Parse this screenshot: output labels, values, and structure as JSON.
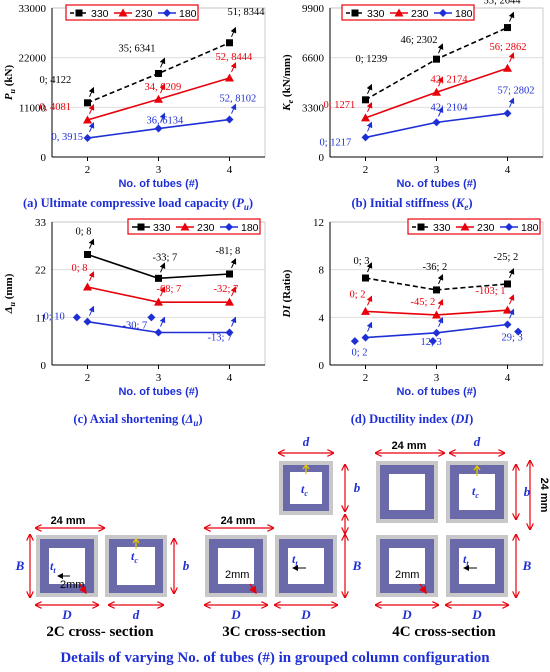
{
  "panels": {
    "a": {
      "caption_pre": "(a) Ultimate compressive load capacity (",
      "caption_sym": "P",
      "caption_sub": "u",
      "caption_post": ")"
    },
    "b": {
      "caption_pre": "(b) Initial stiffness (",
      "caption_sym": "K",
      "caption_sub": "e",
      "caption_post": ")"
    },
    "c": {
      "caption_pre": "(c) Axial shortening (",
      "caption_sym": "Δ",
      "caption_sub": "u",
      "caption_post": ")"
    },
    "d": {
      "caption_pre": "(d) Ductility index (",
      "caption_sym": "DI",
      "caption_sub": "",
      "caption_post": ")"
    }
  },
  "colors": {
    "s330": "#000000",
    "s230": "#e8000b",
    "s180": "#1f2fd6",
    "tube_fill": "#6a6aaa",
    "tube_border": "#c8c8c8",
    "dim": "#e8000b",
    "caption": "#1f2fd6"
  },
  "chart_data": [
    {
      "id": "a",
      "type": "line",
      "xlabel": "No. of tubes (#)",
      "ylabel": "P_u (kN)",
      "ylabel_sym": "P",
      "ylabel_sub": "u",
      "ylabel_unit": " (kN)",
      "x": [
        2,
        3,
        4
      ],
      "xlim": [
        1.5,
        4.5
      ],
      "ylim": [
        0,
        33000
      ],
      "yticks": [
        0,
        11000,
        22000,
        33000
      ],
      "legend": "top-left",
      "series": [
        {
          "name": "330",
          "style": "dashed",
          "marker": "square",
          "values": [
            12000,
            18500,
            25300
          ],
          "labels": [
            "0; 4122",
            "35; 6341",
            "51; 8344"
          ]
        },
        {
          "name": "230",
          "style": "solid",
          "marker": "triangle",
          "values": [
            8200,
            12800,
            17500
          ],
          "labels": [
            "0, 4081",
            "34, 6209",
            "52, 8444"
          ]
        },
        {
          "name": "180",
          "style": "solid",
          "marker": "diamond",
          "values": [
            4200,
            6300,
            8300
          ],
          "labels": [
            "0, 3915",
            "36, 6134",
            "52, 8102"
          ]
        }
      ]
    },
    {
      "id": "b",
      "type": "line",
      "xlabel": "No. of tubes (#)",
      "ylabel": "K_e (kN/mm)",
      "ylabel_sym": "K",
      "ylabel_sub": "e",
      "ylabel_unit": " (kN/mm)",
      "x": [
        2,
        3,
        4
      ],
      "xlim": [
        1.5,
        4.5
      ],
      "ylim": [
        0,
        9900
      ],
      "yticks": [
        0,
        3300,
        6600,
        9900
      ],
      "legend": "top-left",
      "series": [
        {
          "name": "330",
          "style": "dashed",
          "marker": "square",
          "values": [
            3800,
            6500,
            8600
          ],
          "labels": [
            "0; 1239",
            "46; 2302",
            "53; 2644"
          ]
        },
        {
          "name": "230",
          "style": "solid",
          "marker": "triangle",
          "values": [
            2600,
            4300,
            5900
          ],
          "labels": [
            "0; 1271",
            "42; 2174",
            "56; 2862"
          ]
        },
        {
          "name": "180",
          "style": "solid",
          "marker": "diamond",
          "values": [
            1300,
            2300,
            2900
          ],
          "labels": [
            "0; 1217",
            "42; 2104",
            "57; 2802"
          ]
        }
      ]
    },
    {
      "id": "c",
      "type": "line",
      "xlabel": "No. of tubes (#)",
      "ylabel": "Δ_u (mm)",
      "ylabel_sym": "Δ",
      "ylabel_sub": "u",
      "ylabel_unit": " (mm)",
      "x": [
        2,
        3,
        4
      ],
      "xlim": [
        1.5,
        4.5
      ],
      "ylim": [
        0,
        33
      ],
      "yticks": [
        0,
        11,
        22,
        33
      ],
      "legend": "top-right",
      "series": [
        {
          "name": "330",
          "style": "solid",
          "marker": "square",
          "values": [
            25.5,
            20,
            21
          ],
          "labels": [
            "0; 8",
            "-33; 7",
            "-81; 8"
          ]
        },
        {
          "name": "230",
          "style": "solid",
          "marker": "triangle",
          "values": [
            18,
            14.5,
            14.5
          ],
          "labels": [
            "0; 8",
            "-68; 7",
            "-32; 7"
          ]
        },
        {
          "name": "180",
          "style": "solid",
          "marker": "diamond",
          "values": [
            10,
            7.5,
            7.5
          ],
          "labels": [
            "0; 10",
            "-30; 7",
            "-13; 7"
          ]
        }
      ],
      "extra_points": [
        {
          "series": "180",
          "points": [
            [
              1.85,
              11
            ],
            [
              2.9,
              11
            ]
          ]
        }
      ]
    },
    {
      "id": "d",
      "type": "line",
      "xlabel": "No. of tubes (#)",
      "ylabel": "DI (Ratio)",
      "ylabel_sym": "DI",
      "ylabel_sub": "",
      "ylabel_unit": " (Ratio)",
      "x": [
        2,
        3,
        4
      ],
      "xlim": [
        1.5,
        4.5
      ],
      "ylim": [
        0,
        12
      ],
      "yticks": [
        0,
        4,
        8,
        12
      ],
      "legend": "top-right",
      "series": [
        {
          "name": "330",
          "style": "dashed",
          "marker": "square",
          "values": [
            7.3,
            6.3,
            6.8
          ],
          "labels": [
            "0; 3",
            "-36; 2",
            "-25; 2"
          ]
        },
        {
          "name": "230",
          "style": "solid",
          "marker": "triangle",
          "values": [
            4.5,
            4.2,
            4.6
          ],
          "labels": [
            "0; 2",
            "-45; 2",
            "-103; 1"
          ]
        },
        {
          "name": "180",
          "style": "solid",
          "marker": "diamond",
          "values": [
            2.3,
            2.7,
            3.4
          ],
          "labels": [
            "0; 2",
            "12; 3",
            "29; 3"
          ]
        }
      ],
      "extra_points": [
        {
          "series": "180",
          "points": [
            [
              1.85,
              2.0
            ],
            [
              2.95,
              2.0
            ],
            [
              4.15,
              2.8
            ]
          ]
        }
      ]
    }
  ],
  "diagram": {
    "dim_24mm": "24 mm",
    "dim_2mm": "2mm",
    "D": "D",
    "d": "d",
    "B": "B",
    "b": "b",
    "t_c_sym": "t",
    "t_c_sub": "c",
    "t_t_sym": "t",
    "t_t_sub": "t",
    "label_2c": "2C cross- section",
    "label_3c": "3C cross-section",
    "label_4c": "4C cross-section",
    "footer": "Details of varying No. of tubes (#) in grouped column configuration"
  }
}
